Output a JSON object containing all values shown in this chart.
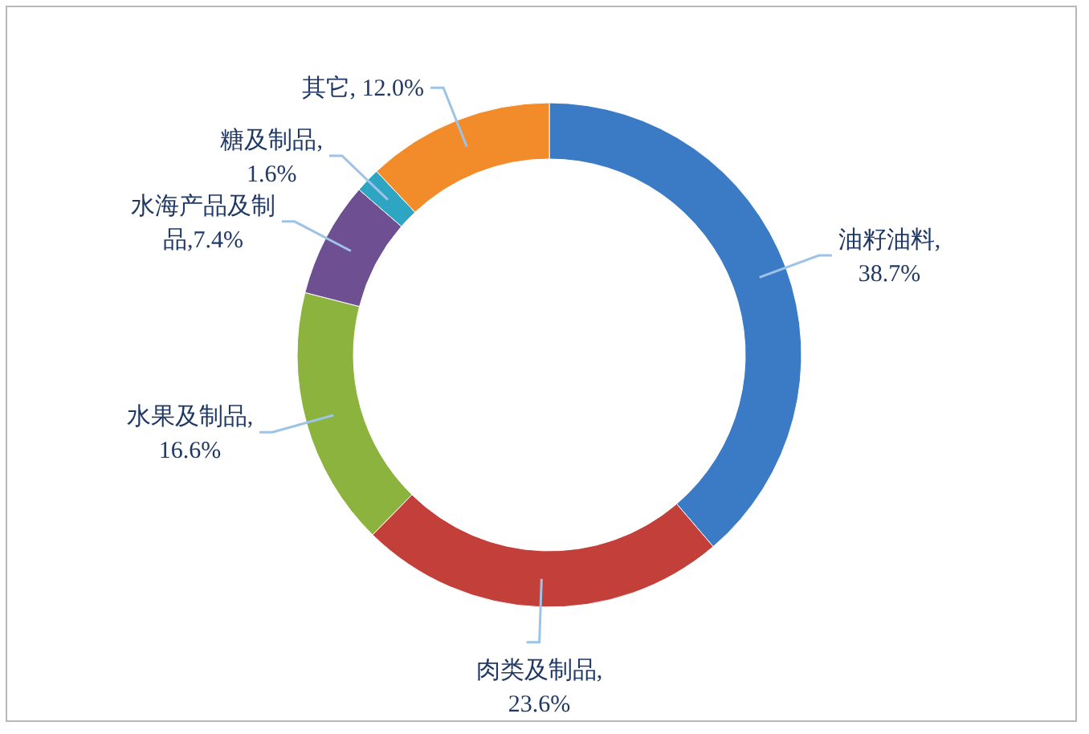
{
  "chart_data": {
    "type": "donut",
    "categories": [
      "油籽油料",
      "肉类及制品",
      "水果及制品",
      "水海产品及制品",
      "糖及制品",
      "其它"
    ],
    "values": [
      38.7,
      23.6,
      16.6,
      7.4,
      1.6,
      12.0
    ],
    "value_labels": [
      ",\n38.7%",
      ",\n23.6%",
      ",\n16.6%",
      ",7.4%",
      ",\n1.6%",
      ", 12.0%"
    ],
    "colors": [
      "#3b7bc6",
      "#c23f3a",
      "#8db33f",
      "#6d4f92",
      "#2ea5c3",
      "#f28c2a"
    ]
  }
}
